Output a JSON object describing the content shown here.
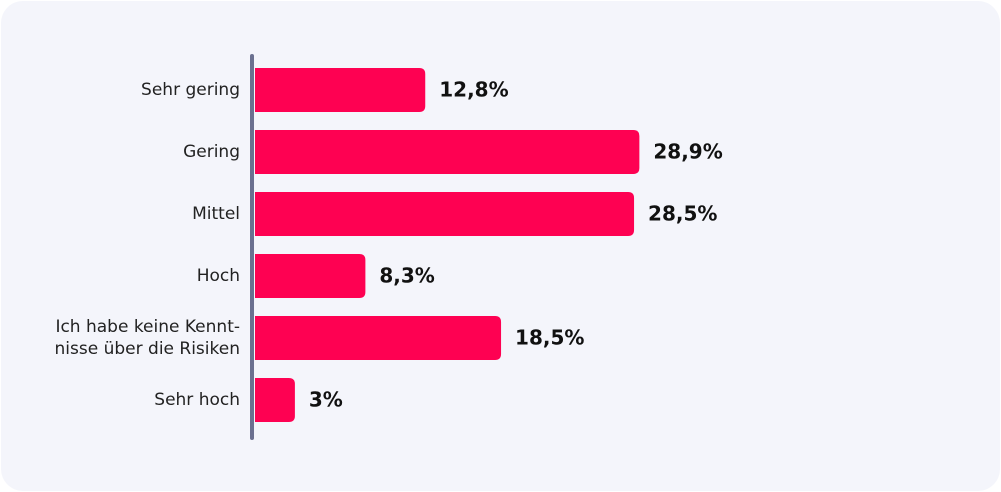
{
  "chart_data": {
    "type": "bar",
    "orientation": "horizontal",
    "categories": [
      "Sehr gering",
      "Gering",
      "Mittel",
      "Hoch",
      "Ich habe keine Kennt-\nnisse über die Risiken",
      "Sehr hoch"
    ],
    "values": [
      12.8,
      28.9,
      28.5,
      8.3,
      18.5,
      3
    ],
    "value_labels": [
      "12,8%",
      "28,9%",
      "28,5%",
      "8,3%",
      "18,5%",
      "3%"
    ],
    "color": "#fe0152"
  }
}
